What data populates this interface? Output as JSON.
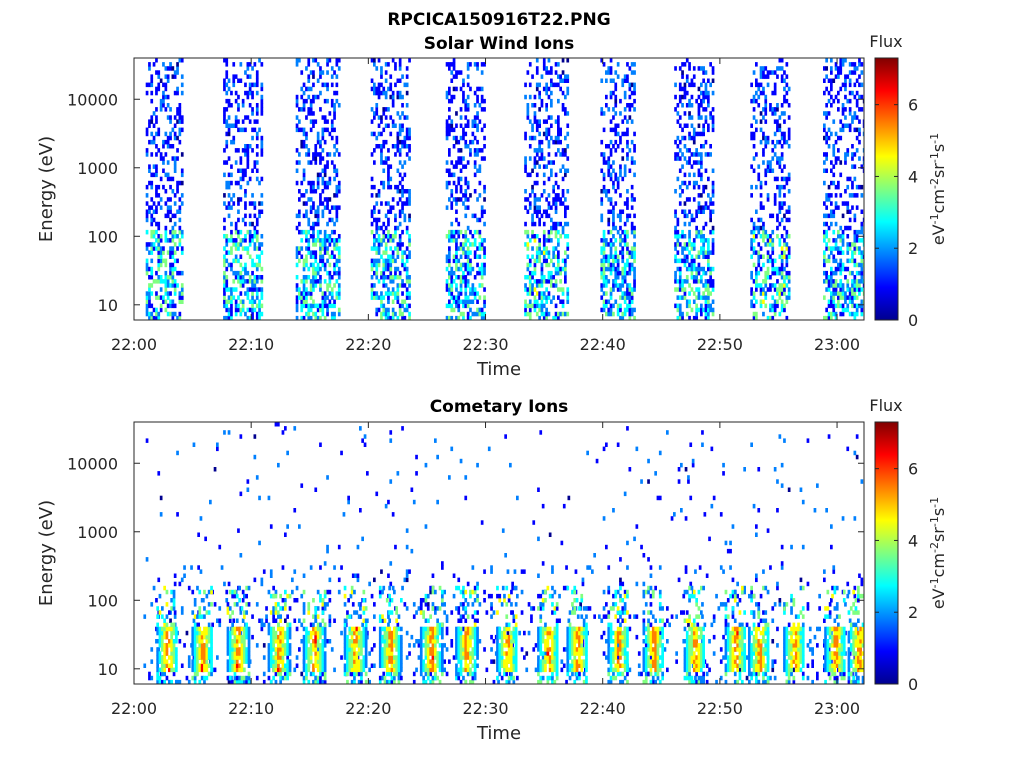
{
  "figure": {
    "title": "RPCICA150916T22.PNG"
  },
  "colors": {
    "scale": [
      "#00008f",
      "#0000ff",
      "#0080ff",
      "#00ffff",
      "#80ff80",
      "#ffff00",
      "#ff8000",
      "#ff0000",
      "#800000"
    ]
  },
  "chart_data": [
    {
      "type": "heatmap",
      "title": "Solar Wind Ions",
      "xlabel": "Time",
      "ylabel": "Energy (eV)",
      "x_ticks": [
        "22:00",
        "22:10",
        "22:20",
        "22:30",
        "22:40",
        "22:50",
        "23:00"
      ],
      "x_range_minutes": [
        0,
        62.3
      ],
      "y_scale": "log",
      "y_ticks": [
        {
          "value": 10,
          "label": "10"
        },
        {
          "value": 100,
          "label": "100"
        },
        {
          "value": 1000,
          "label": "1000"
        },
        {
          "value": 10000,
          "label": "10000"
        }
      ],
      "y_range": [
        6,
        40000
      ],
      "colorbar": {
        "title": "Flux",
        "label": "eV-1cm-2sr-1s-1",
        "range": [
          0,
          7.3
        ],
        "ticks": [
          0,
          2,
          4,
          6
        ]
      },
      "bursts": [
        {
          "start": 1.0,
          "end": 4.2,
          "low_flux": 1.5,
          "high_flux": 3.5
        },
        {
          "start": 7.6,
          "end": 10.8,
          "low_flux": 1.5,
          "high_flux": 3.5
        },
        {
          "start": 13.8,
          "end": 17.4,
          "low_flux": 1.5,
          "high_flux": 3.5
        },
        {
          "start": 20.2,
          "end": 23.4,
          "low_flux": 1.5,
          "high_flux": 3.5
        },
        {
          "start": 26.6,
          "end": 29.8,
          "low_flux": 1.5,
          "high_flux": 3.5
        },
        {
          "start": 33.3,
          "end": 37.0,
          "low_flux": 1.5,
          "high_flux": 3.8
        },
        {
          "start": 39.8,
          "end": 42.8,
          "low_flux": 1.5,
          "high_flux": 3.5
        },
        {
          "start": 46.1,
          "end": 49.5,
          "low_flux": 1.5,
          "high_flux": 3.5
        },
        {
          "start": 52.6,
          "end": 56.0,
          "low_flux": 1.5,
          "high_flux": 3.8
        },
        {
          "start": 58.8,
          "end": 62.3,
          "low_flux": 1.5,
          "high_flux": 3.5
        }
      ]
    },
    {
      "type": "heatmap",
      "title": "Cometary Ions",
      "xlabel": "Time",
      "ylabel": "Energy (eV)",
      "x_ticks": [
        "22:00",
        "22:10",
        "22:20",
        "22:30",
        "22:40",
        "22:50",
        "23:00"
      ],
      "x_range_minutes": [
        0,
        62.3
      ],
      "y_scale": "log",
      "y_ticks": [
        {
          "value": 10,
          "label": "10"
        },
        {
          "value": 100,
          "label": "100"
        },
        {
          "value": 1000,
          "label": "1000"
        },
        {
          "value": 10000,
          "label": "10000"
        }
      ],
      "y_range": [
        6,
        40000
      ],
      "colorbar": {
        "title": "Flux",
        "label": "eV-1cm-2sr-1s-1",
        "range": [
          0,
          7.3
        ],
        "ticks": [
          0,
          2,
          4,
          6
        ]
      },
      "peaks_minutes": [
        2.8,
        5.8,
        8.8,
        12.3,
        15.3,
        18.8,
        21.8,
        25.3,
        28.3,
        31.8,
        35.3,
        37.8,
        41.3,
        44.3,
        47.8,
        51.3,
        53.3,
        56.3,
        59.8,
        61.8
      ],
      "peak_energy_range_eV": [
        8,
        40
      ],
      "peak_flux_max": 6.5
    }
  ]
}
